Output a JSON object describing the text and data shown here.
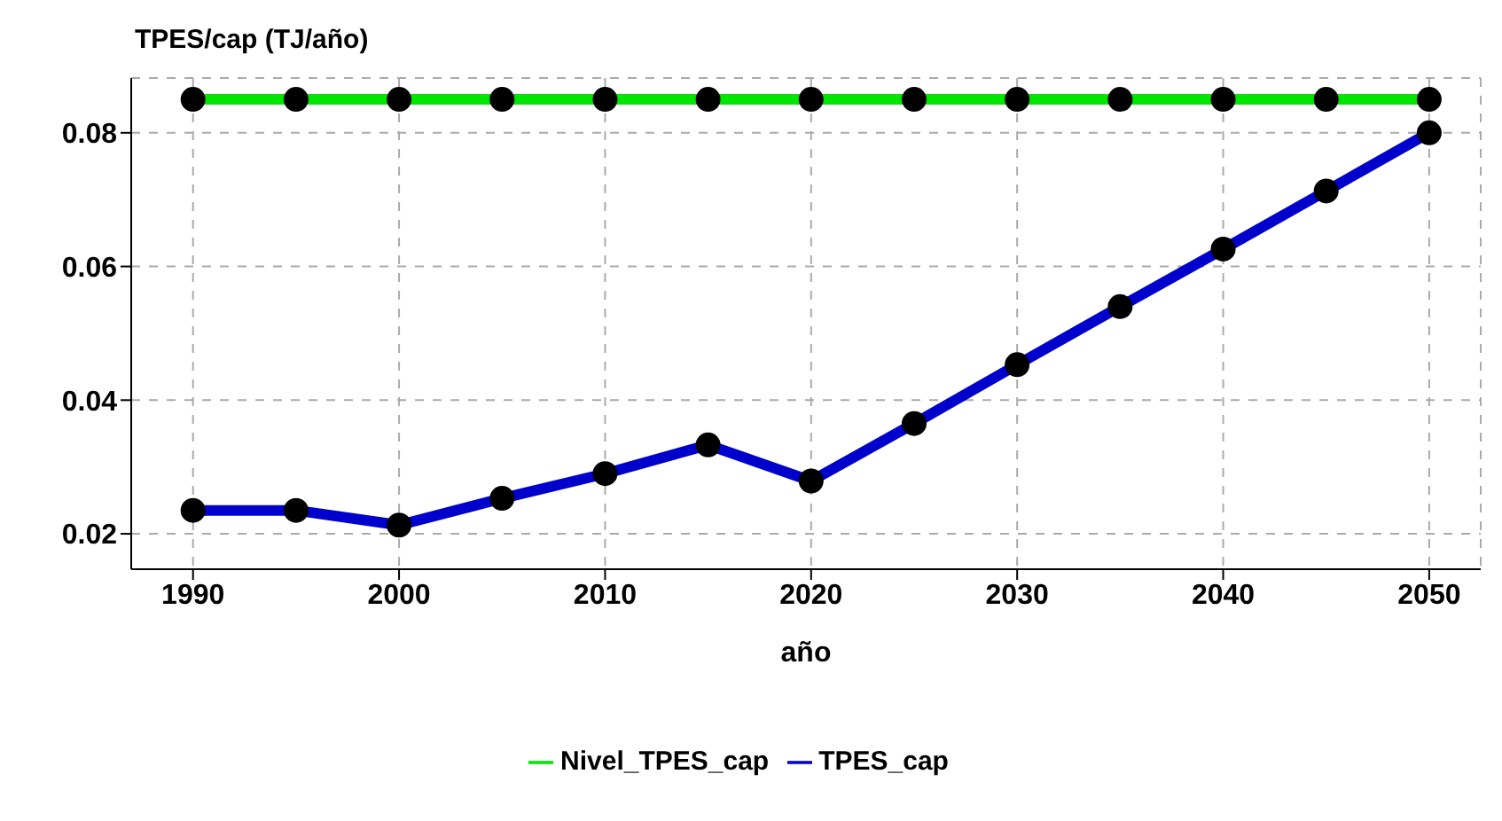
{
  "chart_data": {
    "type": "line",
    "title": "TPES/cap (TJ/año)",
    "xlabel": "año",
    "x": [
      1990,
      1995,
      2000,
      2005,
      2010,
      2015,
      2020,
      2025,
      2030,
      2035,
      2040,
      2045,
      2050
    ],
    "series": [
      {
        "name": "TPES_cap",
        "color": "#0000cd",
        "values": [
          0.0235,
          0.0235,
          0.0213,
          0.0253,
          0.029,
          0.0333,
          0.0279,
          0.0365,
          0.0453,
          0.054,
          0.0626,
          0.0713,
          0.08
        ]
      },
      {
        "name": "Nivel_TPES_cap",
        "color": "#00e600",
        "values": [
          0.085,
          0.085,
          0.085,
          0.085,
          0.085,
          0.085,
          0.085,
          0.085,
          0.085,
          0.085,
          0.085,
          0.085,
          0.085
        ]
      }
    ],
    "xlim": [
      1987,
      2052.5
    ],
    "xticks": [
      1990,
      2000,
      2010,
      2020,
      2030,
      2040,
      2050
    ],
    "ylim": [
      0.0147,
      0.0882
    ],
    "yticks": [
      0.02,
      0.04,
      0.06,
      0.08
    ],
    "grid": true,
    "legend": "bottom",
    "marker": "circle",
    "line_style": "solid"
  }
}
